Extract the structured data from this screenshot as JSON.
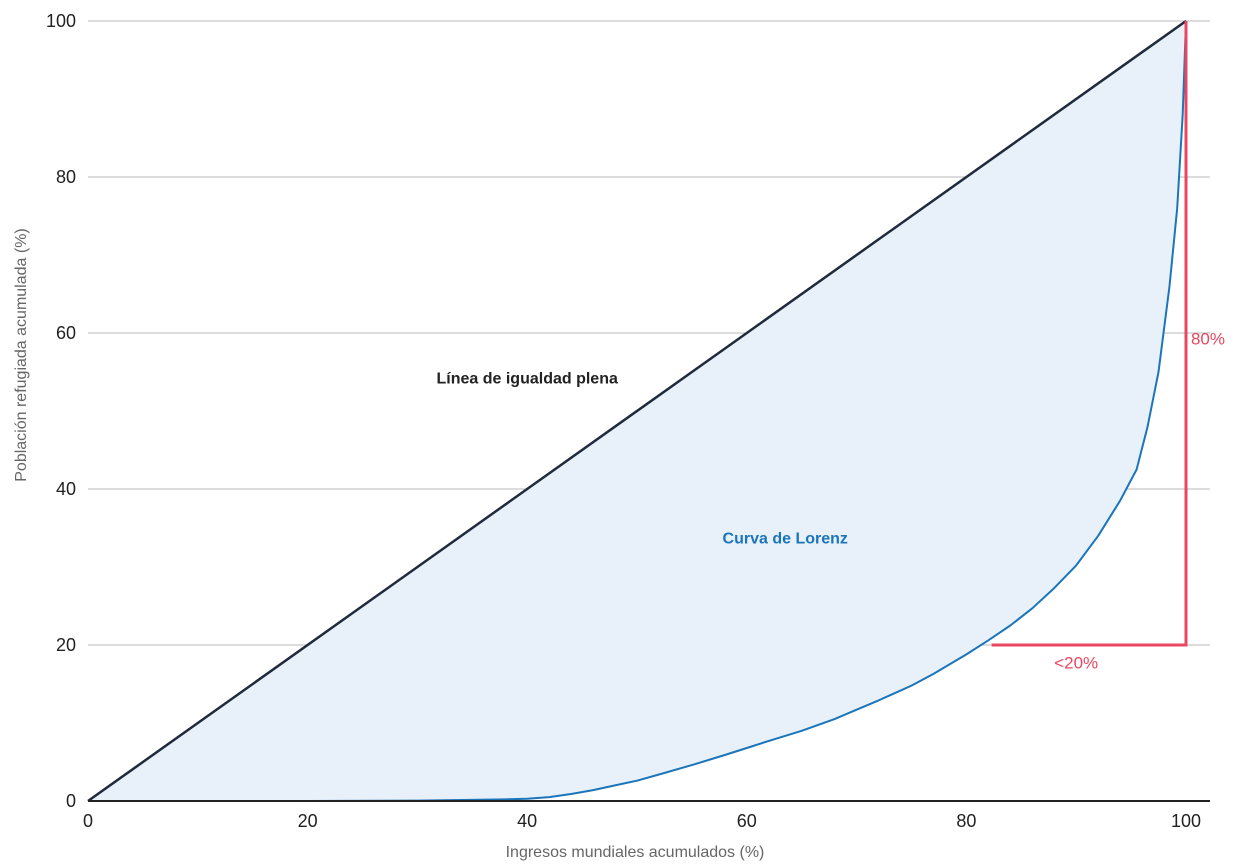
{
  "chart_data": {
    "type": "area",
    "xlabel": "Ingresos mundiales acumulados (%)",
    "ylabel": "Población refugiada acumulada (%)",
    "xlim": [
      0,
      100
    ],
    "ylim": [
      0,
      100
    ],
    "x_ticks": [
      0,
      20,
      40,
      60,
      80,
      100
    ],
    "y_ticks": [
      0,
      20,
      40,
      60,
      80,
      100
    ],
    "grid": "horizontal",
    "series": [
      {
        "name": "Línea de igualdad plena",
        "color": "#1f2a3c",
        "x": [
          0,
          100
        ],
        "y": [
          0,
          100
        ]
      },
      {
        "name": "Curva de Lorenz",
        "color": "#1b75bb",
        "x": [
          0,
          20,
          30,
          38,
          40,
          42,
          44,
          46,
          48,
          50,
          52,
          55,
          58,
          60,
          62,
          65,
          68,
          70,
          72,
          75,
          77,
          80,
          82,
          84,
          86,
          88,
          90,
          92,
          94,
          95.5,
          96.5,
          97.5,
          98.5,
          99.2,
          99.7,
          100
        ],
        "y": [
          0,
          0,
          0.05,
          0.2,
          0.3,
          0.5,
          0.9,
          1.4,
          2.0,
          2.6,
          3.4,
          4.6,
          5.9,
          6.8,
          7.7,
          9.0,
          10.5,
          11.7,
          12.9,
          14.8,
          16.3,
          18.8,
          20.6,
          22.5,
          24.7,
          27.3,
          30.2,
          34.0,
          38.5,
          42.5,
          48,
          55,
          66,
          76,
          88,
          100
        ]
      }
    ],
    "fill_color": "#e8f0f9",
    "annotations": [
      {
        "text": "Línea de igualdad plena",
        "x": 40,
        "y": 53.5,
        "color": "#222222"
      },
      {
        "text": "Curva de Lorenz",
        "x": 63.5,
        "y": 33,
        "color": "#1b75bb"
      },
      {
        "text": "80%",
        "x": 102,
        "y": 58.5,
        "color": "#e8475f"
      },
      {
        "text": "<20%",
        "x": 90,
        "y": 17,
        "color": "#e8475f"
      }
    ],
    "bracket": {
      "color": "#e8475f",
      "points": [
        [
          82.3,
          20
        ],
        [
          100,
          20
        ],
        [
          100,
          100
        ]
      ]
    }
  }
}
